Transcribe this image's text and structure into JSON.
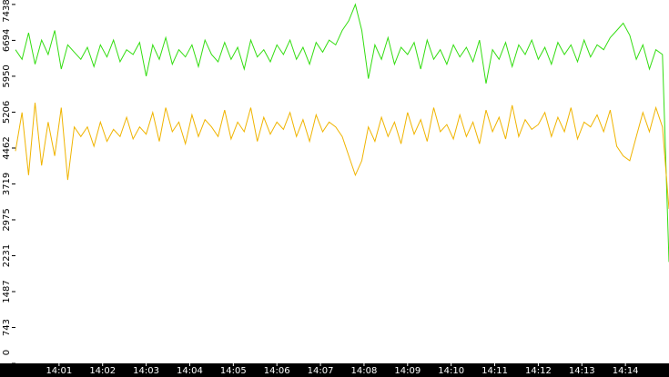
{
  "chart_data": {
    "type": "line",
    "x": [
      "14:00:00",
      "14:00:09",
      "14:00:18",
      "14:00:27",
      "14:00:36",
      "14:00:45",
      "14:00:54",
      "14:01:03",
      "14:01:12",
      "14:01:21",
      "14:01:30",
      "14:01:39",
      "14:01:48",
      "14:01:57",
      "14:02:06",
      "14:02:15",
      "14:02:24",
      "14:02:33",
      "14:02:42",
      "14:02:51",
      "14:03:00",
      "14:03:09",
      "14:03:18",
      "14:03:27",
      "14:03:36",
      "14:03:45",
      "14:03:54",
      "14:04:03",
      "14:04:12",
      "14:04:21",
      "14:04:30",
      "14:04:39",
      "14:04:48",
      "14:04:57",
      "14:05:06",
      "14:05:15",
      "14:05:24",
      "14:05:33",
      "14:05:42",
      "14:05:51",
      "14:06:00",
      "14:06:09",
      "14:06:18",
      "14:06:27",
      "14:06:36",
      "14:06:45",
      "14:06:54",
      "14:07:03",
      "14:07:12",
      "14:07:21",
      "14:07:30",
      "14:07:39",
      "14:07:48",
      "14:07:57",
      "14:08:06",
      "14:08:15",
      "14:08:24",
      "14:08:33",
      "14:08:42",
      "14:08:51",
      "14:09:00",
      "14:09:09",
      "14:09:18",
      "14:09:27",
      "14:09:36",
      "14:09:45",
      "14:09:54",
      "14:10:03",
      "14:10:12",
      "14:10:21",
      "14:10:30",
      "14:10:39",
      "14:10:48",
      "14:10:57",
      "14:11:06",
      "14:11:15",
      "14:11:24",
      "14:11:33",
      "14:11:42",
      "14:11:51",
      "14:12:00",
      "14:12:09",
      "14:12:18",
      "14:12:27",
      "14:12:36",
      "14:12:45",
      "14:12:54",
      "14:13:03",
      "14:13:12",
      "14:13:21",
      "14:13:30",
      "14:13:39",
      "14:13:48",
      "14:13:57",
      "14:14:06",
      "14:14:15",
      "14:14:24",
      "14:14:33",
      "14:14:42",
      "14:14:51",
      "14:15:00"
    ],
    "series": [
      {
        "color": "#33dd11",
        "values": [
          6500,
          6300,
          6850,
          6200,
          6700,
          6400,
          6900,
          6100,
          6600,
          6450,
          6300,
          6550,
          6150,
          6600,
          6350,
          6700,
          6250,
          6500,
          6400,
          6650,
          5950,
          6600,
          6300,
          6750,
          6200,
          6500,
          6350,
          6600,
          6150,
          6700,
          6400,
          6250,
          6650,
          6300,
          6550,
          6100,
          6700,
          6350,
          6500,
          6250,
          6600,
          6400,
          6700,
          6300,
          6550,
          6200,
          6650,
          6450,
          6700,
          6600,
          6900,
          7100,
          7438,
          6900,
          5900,
          6600,
          6300,
          6750,
          6200,
          6550,
          6400,
          6650,
          6100,
          6700,
          6300,
          6500,
          6200,
          6600,
          6350,
          6550,
          6250,
          6700,
          5800,
          6500,
          6300,
          6650,
          6150,
          6600,
          6400,
          6700,
          6300,
          6550,
          6200,
          6650,
          6400,
          6600,
          6250,
          6700,
          6350,
          6600,
          6500,
          6750,
          6900,
          7050,
          6800,
          6300,
          6600,
          6100,
          6500,
          6400,
          2100
        ]
      },
      {
        "color": "#f0b400",
        "values": [
          4400,
          5200,
          3900,
          5400,
          4100,
          5000,
          4300,
          5300,
          3800,
          4900,
          4700,
          4900,
          4500,
          5000,
          4600,
          4850,
          4700,
          5100,
          4650,
          4900,
          4750,
          5200,
          4600,
          5300,
          4800,
          5000,
          4550,
          5150,
          4700,
          5050,
          4900,
          4700,
          5250,
          4650,
          5000,
          4800,
          5300,
          4600,
          5100,
          4750,
          5000,
          4850,
          5200,
          4700,
          5050,
          4600,
          5150,
          4800,
          5000,
          4900,
          4700,
          4300,
          3900,
          4200,
          4900,
          4600,
          5100,
          4700,
          5000,
          4550,
          5200,
          4750,
          5050,
          4600,
          5300,
          4800,
          4950,
          4650,
          5150,
          4700,
          5000,
          4550,
          5250,
          4800,
          5100,
          4650,
          5350,
          4700,
          5050,
          4850,
          4950,
          5200,
          4700,
          5100,
          4800,
          5300,
          4650,
          5000,
          4900,
          5150,
          4800,
          5250,
          4500,
          4300,
          4200,
          4700,
          5200,
          4800,
          5300,
          4900,
          3200
        ]
      }
    ],
    "xlim": [
      "14:00:00",
      "14:15:00"
    ],
    "xticks": [
      "14:01",
      "14:02",
      "14:03",
      "14:04",
      "14:05",
      "14:06",
      "14:07",
      "14:08",
      "14:09",
      "14:10",
      "14:11",
      "14:12",
      "14:13",
      "14:14"
    ],
    "ylim": [
      0,
      7530
    ],
    "yticks": [
      0,
      743,
      1487,
      2231,
      2975,
      3719,
      4462,
      5206,
      5950,
      6694,
      7438
    ]
  }
}
